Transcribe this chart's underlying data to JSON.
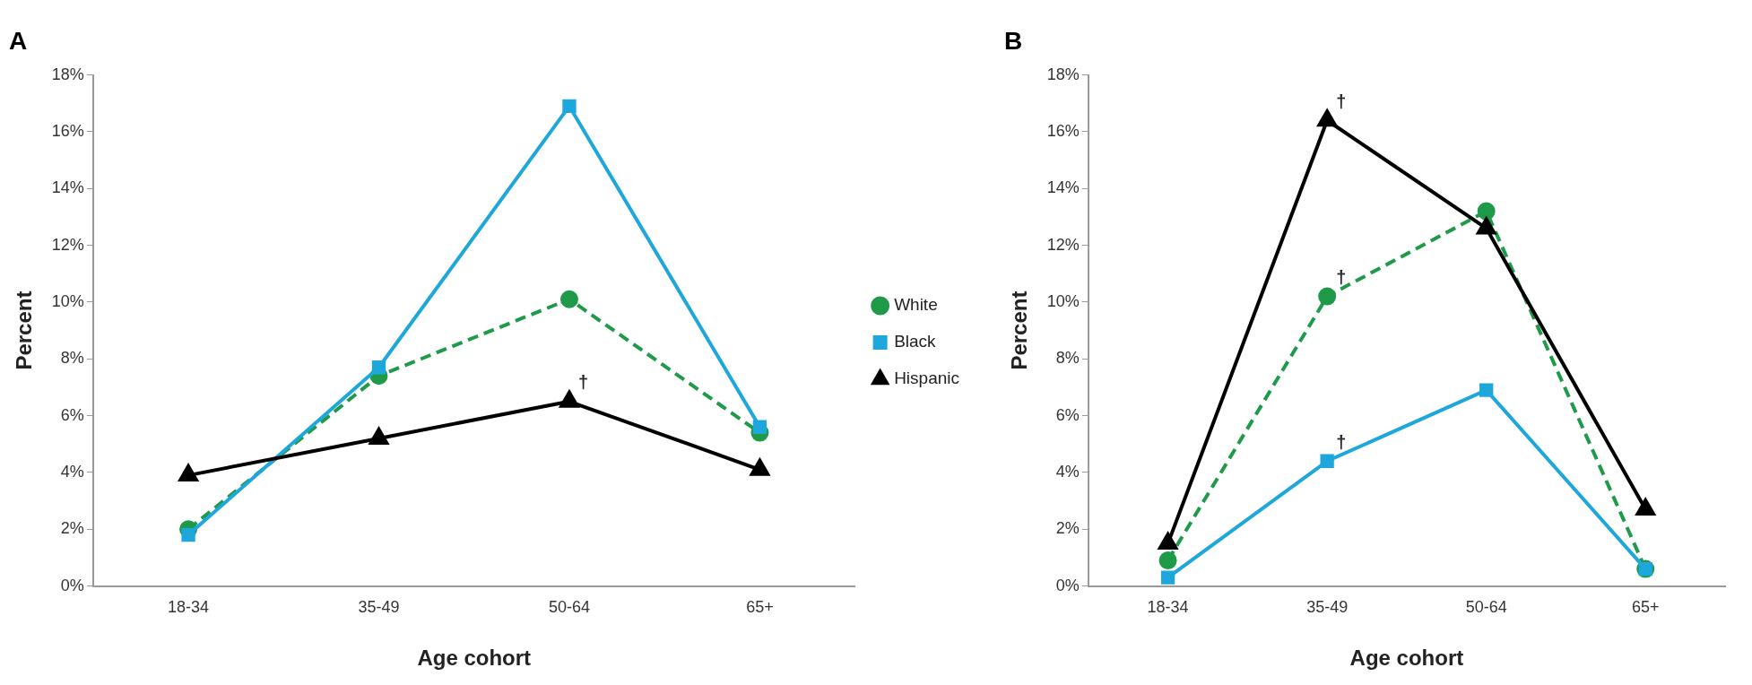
{
  "chart_data": [
    {
      "type": "line",
      "title": "A",
      "xlabel": "Age cohort",
      "ylabel": "Percent",
      "categories": [
        "18-34",
        "35-49",
        "50-64",
        "65+"
      ],
      "ylim": [
        0,
        18
      ],
      "yticks": [
        {
          "value": 0,
          "label": "0%"
        },
        {
          "value": 2,
          "label": "2%"
        },
        {
          "value": 4,
          "label": "4%"
        },
        {
          "value": 6,
          "label": "6%"
        },
        {
          "value": 8,
          "label": "8%"
        },
        {
          "value": 10,
          "label": "10%"
        },
        {
          "value": 12,
          "label": "12%"
        },
        {
          "value": 14,
          "label": "14%"
        },
        {
          "value": 16,
          "label": "16%"
        },
        {
          "value": 18,
          "label": "18%"
        }
      ],
      "grid": false,
      "legend": "right",
      "series": [
        {
          "name": "White",
          "color": "#1e9a48",
          "marker": "circle",
          "line_style": "dashed",
          "values": [
            2.0,
            7.4,
            10.1,
            5.4
          ]
        },
        {
          "name": "Black",
          "color": "#1ea7db",
          "marker": "square",
          "line_style": "solid",
          "values": [
            1.8,
            7.7,
            16.9,
            5.6
          ]
        },
        {
          "name": "Hispanic",
          "color": "#000000",
          "marker": "triangle",
          "line_style": "solid",
          "values": [
            3.9,
            5.2,
            6.5,
            4.1
          ]
        }
      ],
      "annotations": [
        {
          "text": "†",
          "x": "50-64",
          "y": 6.5
        }
      ]
    },
    {
      "type": "line",
      "title": "B",
      "xlabel": "Age cohort",
      "ylabel": "Percent",
      "categories": [
        "18-34",
        "35-49",
        "50-64",
        "65+"
      ],
      "ylim": [
        0,
        18
      ],
      "yticks": [
        {
          "value": 0,
          "label": "0%"
        },
        {
          "value": 2,
          "label": "2%"
        },
        {
          "value": 4,
          "label": "4%"
        },
        {
          "value": 6,
          "label": "6%"
        },
        {
          "value": 8,
          "label": "8%"
        },
        {
          "value": 10,
          "label": "10%"
        },
        {
          "value": 12,
          "label": "12%"
        },
        {
          "value": 14,
          "label": "14%"
        },
        {
          "value": 16,
          "label": "16%"
        },
        {
          "value": 18,
          "label": "18%"
        }
      ],
      "grid": false,
      "legend": false,
      "series": [
        {
          "color": "#1e9a48",
          "marker": "circle",
          "line_style": "dashed",
          "values": [
            0.9,
            10.2,
            13.2,
            0.6
          ]
        },
        {
          "color": "#1ea7db",
          "marker": "square",
          "line_style": "solid",
          "values": [
            0.3,
            4.4,
            6.9,
            0.6
          ]
        },
        {
          "color": "#000000",
          "marker": "triangle",
          "line_style": "solid",
          "values": [
            1.5,
            16.4,
            12.6,
            2.7
          ]
        }
      ],
      "annotations": [
        {
          "text": "†",
          "x": "35-49",
          "y": 16.4
        },
        {
          "text": "†",
          "x": "35-49",
          "y": 10.2
        },
        {
          "text": "†",
          "x": "35-49",
          "y": 4.4
        }
      ]
    }
  ]
}
